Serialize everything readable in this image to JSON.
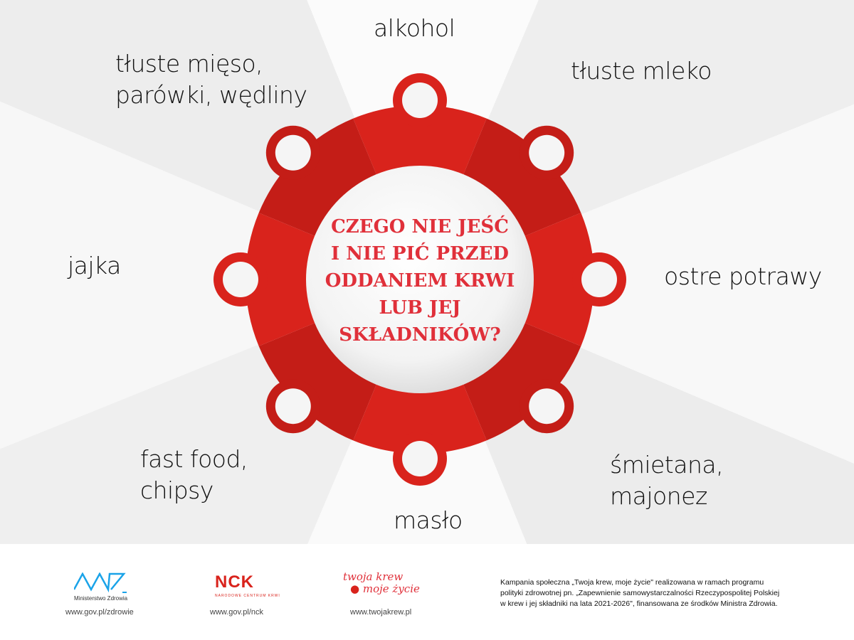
{
  "center_title": [
    "CZEGO NIE JEŚĆ",
    "I NIE PIĆ PRZED",
    "ODDANIEM KRWI",
    "LUB JEJ",
    "SKŁADNIKÓW?"
  ],
  "items": [
    {
      "id": "alkohol",
      "lines": [
        "alkohol"
      ]
    },
    {
      "id": "tluste-mleko",
      "lines": [
        "tłuste mleko"
      ]
    },
    {
      "id": "ostre-potrawy",
      "lines": [
        "ostre potrawy"
      ]
    },
    {
      "id": "smietana",
      "lines": [
        "śmietana,",
        "majonez"
      ]
    },
    {
      "id": "maslo",
      "lines": [
        "masło"
      ]
    },
    {
      "id": "fast-food",
      "lines": [
        "fast food,",
        "chipsy"
      ]
    },
    {
      "id": "jajka",
      "lines": [
        "jajka"
      ]
    },
    {
      "id": "tluste-mieso",
      "lines": [
        "tłuste mięso,",
        "parówki, wędliny"
      ]
    }
  ],
  "footer": {
    "mz_logo": "Ministerstwo Zdrowia",
    "mz_url": "www.gov.pl/zdrowie",
    "nck_logo": "NCK",
    "nck_sub": "NARODOWE CENTRUM KRWI",
    "nck_url": "www.gov.pl/nck",
    "tk_logo": [
      "twoja krew",
      "moje życie"
    ],
    "tk_url": "www.twojakrew.pl",
    "campaign": [
      "Kampania społeczna „Twoja krew, moje życie\" realizowana w ramach programu",
      "polityki zdrowotnej pn. „Zapewnienie samowystarczalności Rzeczypospolitej Polskiej",
      "w krew i jej składniki na lata 2021-2026\", finansowana ze środków Ministra Zdrowia."
    ]
  },
  "colors": {
    "red": "#d9231c",
    "red_dark": "#c41d17",
    "title": "#e0303a",
    "mz_blue": "#1aa3e8"
  }
}
